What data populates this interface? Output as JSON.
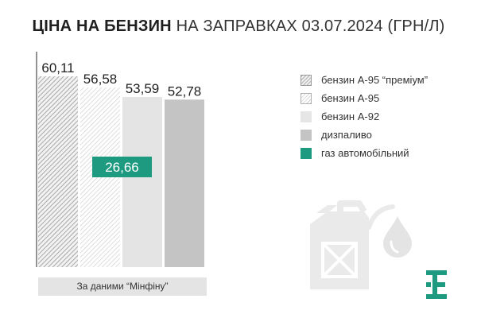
{
  "title": {
    "bold": "ЦІНА НА БЕНЗИН",
    "light": "НА ЗАПРАВКАХ 03.07.2024 (ГРН/Л)"
  },
  "chart_data": {
    "type": "bar",
    "title": "ЦІНА НА БЕНЗИН НА ЗАПРАВКАХ 03.07.2024 (ГРН/Л)",
    "categories": [
      "бензин А-95 “преміум”",
      "бензин А-95",
      "бензин А-92",
      "дизпаливо",
      "газ автомобільний"
    ],
    "values": [
      60.11,
      56.58,
      53.59,
      52.78,
      26.66
    ],
    "labels": [
      "60,11",
      "56,58",
      "53,59",
      "52,78",
      "26,66"
    ],
    "ylim": [
      0,
      60.11
    ],
    "grid": false,
    "legend_position": "right",
    "colors": [
      "#bdbdbd",
      "#d0d0d0",
      "#e2e2e2",
      "#c4c4c4",
      "#1e9a80"
    ]
  },
  "legend": {
    "items": [
      {
        "label": "бензин А-95 “преміум”",
        "swatch": "hatch-dark"
      },
      {
        "label": "бензин А-95",
        "swatch": "hatch-light"
      },
      {
        "label": "бензин А-92",
        "color": "#e6e6e6"
      },
      {
        "label": "дизпаливо",
        "color": "#c4c4c4"
      },
      {
        "label": "газ автомобільний",
        "color": "#1e9a80"
      }
    ]
  },
  "source": "За даними “Мінфіну”",
  "decor": {
    "canister_icon": "fuel-canister-icon",
    "drop_icon": "fuel-drop-icon",
    "logo_icon": "brand-logo-icon",
    "logo_color": "#1e9a80"
  }
}
